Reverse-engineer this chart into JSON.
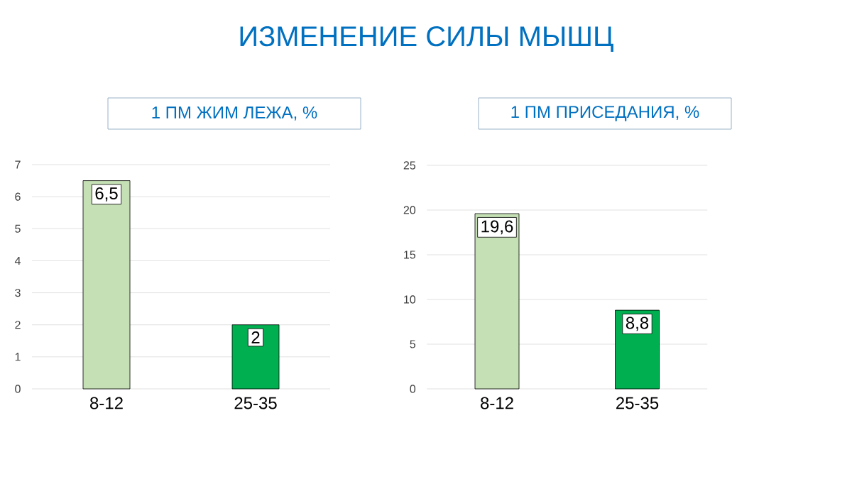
{
  "chart_data": [
    {
      "type": "other",
      "title": "ИЗМЕНЕНИЕ СИЛЫ МЫШЦ"
    },
    {
      "type": "bar",
      "title": "1 ПМ ЖИМ ЛЕЖА, %",
      "categories": [
        "8-12",
        "25-35"
      ],
      "values": [
        6.5,
        2
      ],
      "value_labels": [
        "6,5",
        "2"
      ],
      "colors": [
        "#c5e0b4",
        "#00b050"
      ],
      "ylim": [
        0,
        7
      ],
      "yticks": [
        0,
        1,
        2,
        3,
        4,
        5,
        6,
        7
      ],
      "grid": "y"
    },
    {
      "type": "bar",
      "title": "1 ПМ ПРИСЕДАНИЯ, %",
      "categories": [
        "8-12",
        "25-35"
      ],
      "values": [
        19.6,
        8.8
      ],
      "value_labels": [
        "19,6",
        "8,8"
      ],
      "colors": [
        "#c5e0b4",
        "#00b050"
      ],
      "ylim": [
        0,
        25
      ],
      "yticks": [
        0,
        5,
        10,
        15,
        20,
        25
      ],
      "grid": "y"
    }
  ]
}
